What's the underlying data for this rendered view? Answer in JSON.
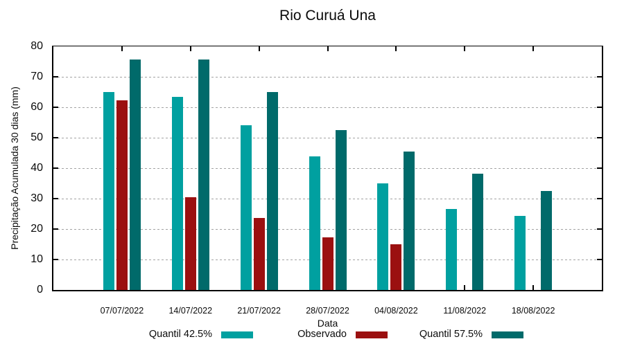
{
  "title": "Rio Curuá Una",
  "chart_data": {
    "type": "bar",
    "title": "Rio Curuá Una",
    "xlabel": "Data",
    "ylabel": "Precipitação Acumulada 30 dias (mm)",
    "ylim": [
      0,
      80
    ],
    "ytick_step": 10,
    "yticks": [
      0,
      10,
      20,
      30,
      40,
      50,
      60,
      70,
      80
    ],
    "grid": true,
    "grid_color": "#a2a2a2",
    "legend_position": "bottom",
    "categories": [
      "07/07/2022",
      "14/07/2022",
      "21/07/2022",
      "28/07/2022",
      "04/08/2022",
      "11/08/2022",
      "18/08/2022"
    ],
    "series": [
      {
        "name": "Quantil 42.5%",
        "color": "#00A0A0",
        "values": [
          64.9,
          63.5,
          54.1,
          43.9,
          34.9,
          26.7,
          24.4
        ]
      },
      {
        "name": "Observado",
        "color": "#9B1010",
        "values": [
          62.2,
          30.5,
          23.6,
          17.3,
          14.9,
          null,
          null
        ]
      },
      {
        "name": "Quantil 57.5%",
        "color": "#006A6A",
        "values": [
          75.6,
          75.6,
          65.0,
          52.5,
          45.4,
          38.2,
          32.6
        ]
      }
    ]
  }
}
